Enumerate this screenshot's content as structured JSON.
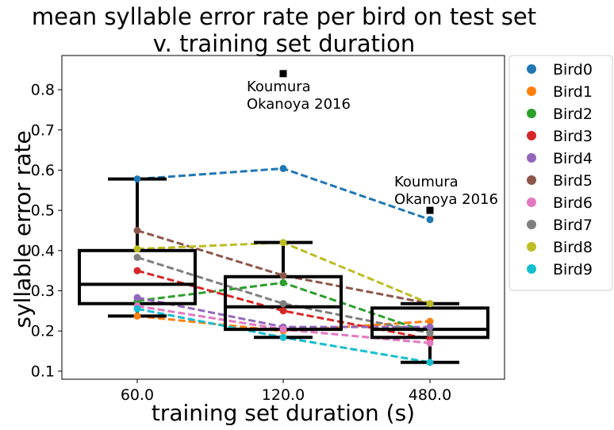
{
  "chart_data": {
    "type": "line",
    "title": "mean syllable error rate per bird on test set",
    "subtitle": "v. training set duration",
    "xlabel": "training set duration (s)",
    "ylabel": "syllable error rate",
    "categories": [
      "60.0",
      "120.0",
      "480.0"
    ],
    "ylim": [
      0.08,
      0.885
    ],
    "yticks": [
      0.1,
      0.2,
      0.3,
      0.4,
      0.5,
      0.6,
      0.7,
      0.8
    ],
    "ytick_labels": [
      "0.1",
      "0.2",
      "0.3",
      "0.4",
      "0.5",
      "0.6",
      "0.7",
      "0.8"
    ],
    "grid": false,
    "legend_position": "outside-right",
    "series": [
      {
        "name": "Bird0",
        "color": "#1f77b4",
        "values": [
          0.578,
          0.604,
          0.477
        ]
      },
      {
        "name": "Bird1",
        "color": "#ff7f0e",
        "values": [
          0.237,
          0.2,
          0.224
        ]
      },
      {
        "name": "Bird2",
        "color": "#2ca02c",
        "values": [
          0.275,
          0.32,
          0.195
        ]
      },
      {
        "name": "Bird3",
        "color": "#d62728",
        "values": [
          0.35,
          0.25,
          0.18
        ]
      },
      {
        "name": "Bird4",
        "color": "#9467bd",
        "values": [
          0.283,
          0.21,
          0.21
        ]
      },
      {
        "name": "Bird5",
        "color": "#8c564b",
        "values": [
          0.45,
          0.338,
          0.268
        ]
      },
      {
        "name": "Bird6",
        "color": "#e377c2",
        "values": [
          0.262,
          0.204,
          0.17
        ]
      },
      {
        "name": "Bird7",
        "color": "#7f7f7f",
        "values": [
          0.383,
          0.268,
          0.195
        ]
      },
      {
        "name": "Bird8",
        "color": "#bcbd22",
        "values": [
          0.404,
          0.42,
          0.268
        ]
      },
      {
        "name": "Bird9",
        "color": "#17becf",
        "values": [
          0.255,
          0.184,
          0.122
        ]
      }
    ],
    "boxplots": [
      {
        "category": "60.0",
        "whisker_low": 0.237,
        "q1": 0.268,
        "median": 0.316,
        "q3": 0.4,
        "whisker_high": 0.578
      },
      {
        "category": "120.0",
        "whisker_low": 0.184,
        "q1": 0.204,
        "median": 0.26,
        "q3": 0.335,
        "whisker_high": 0.42
      },
      {
        "category": "480.0",
        "whisker_low": 0.122,
        "q1": 0.184,
        "median": 0.204,
        "q3": 0.257,
        "whisker_high": 0.268
      }
    ],
    "reference_points": [
      {
        "category": "120.0",
        "value": 0.84,
        "label_line1": "Koumura",
        "label_line2": "Okanoya 2016"
      },
      {
        "category": "480.0",
        "value": 0.5,
        "label_line1": "Koumura",
        "label_line2": "Okanoya 2016"
      }
    ]
  }
}
